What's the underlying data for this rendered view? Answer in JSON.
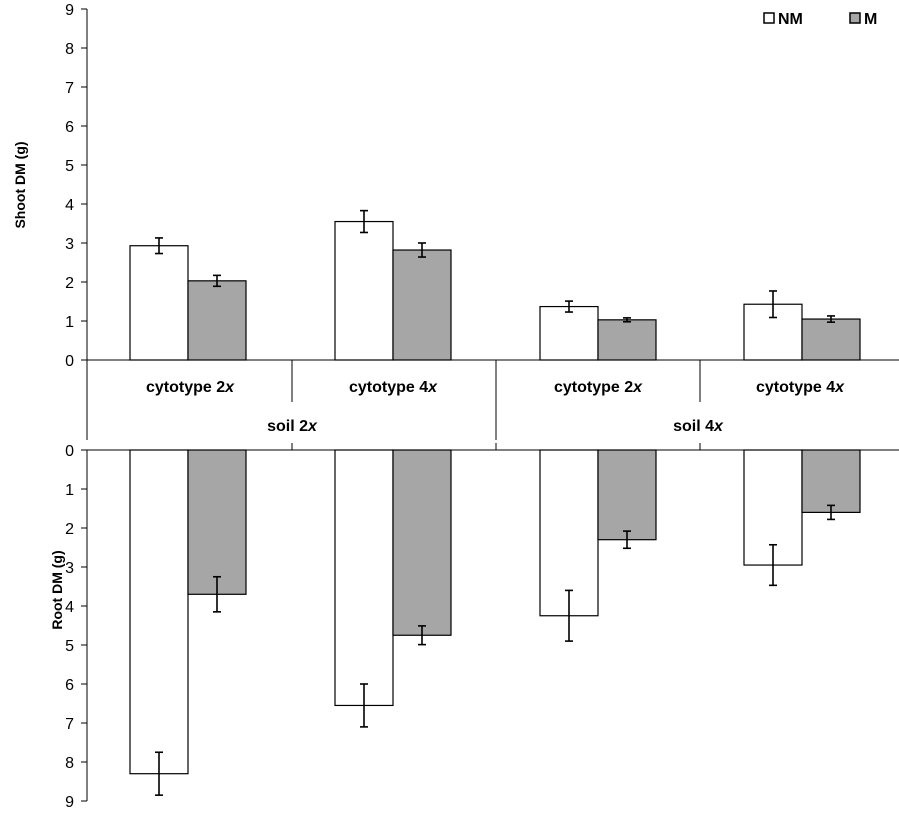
{
  "chart_data": {
    "type": "bar",
    "legend": {
      "placement": "top-right",
      "entries": [
        {
          "label": "NM",
          "color": "#ffffff"
        },
        {
          "label": "M",
          "color": "#a6a6a6"
        }
      ]
    },
    "groups": [
      {
        "soil": "soil 2",
        "soil_suffix": "x",
        "cytotypes": [
          {
            "prefix": "cytotype 2",
            "suffix": "x"
          },
          {
            "prefix": "cytotype 4",
            "suffix": "x"
          }
        ]
      },
      {
        "soil": "soil 4",
        "soil_suffix": "x",
        "cytotypes": [
          {
            "prefix": "cytotype 2",
            "suffix": "x"
          },
          {
            "prefix": "cytotype 4",
            "suffix": "x"
          }
        ]
      }
    ],
    "panels": [
      {
        "id": "shoot",
        "ylabel": "Shoot DM (g)",
        "ylim": [
          0,
          9
        ],
        "direction": "up",
        "series": [
          {
            "name": "NM",
            "values": [
              2.93,
              3.55,
              1.37,
              1.43
            ],
            "errors": [
              0.2,
              0.28,
              0.14,
              0.34
            ]
          },
          {
            "name": "M",
            "values": [
              2.03,
              2.82,
              1.03,
              1.05
            ],
            "errors": [
              0.14,
              0.18,
              0.05,
              0.08
            ]
          }
        ]
      },
      {
        "id": "root",
        "ylabel": "Root DM (g)",
        "ylim": [
          0,
          9
        ],
        "direction": "down",
        "series": [
          {
            "name": "NM",
            "values": [
              8.3,
              6.55,
              4.25,
              2.95
            ],
            "errors": [
              0.55,
              0.55,
              0.65,
              0.52
            ]
          },
          {
            "name": "M",
            "values": [
              3.7,
              4.75,
              2.3,
              1.6
            ],
            "errors": [
              0.45,
              0.24,
              0.22,
              0.18
            ]
          }
        ]
      }
    ]
  }
}
